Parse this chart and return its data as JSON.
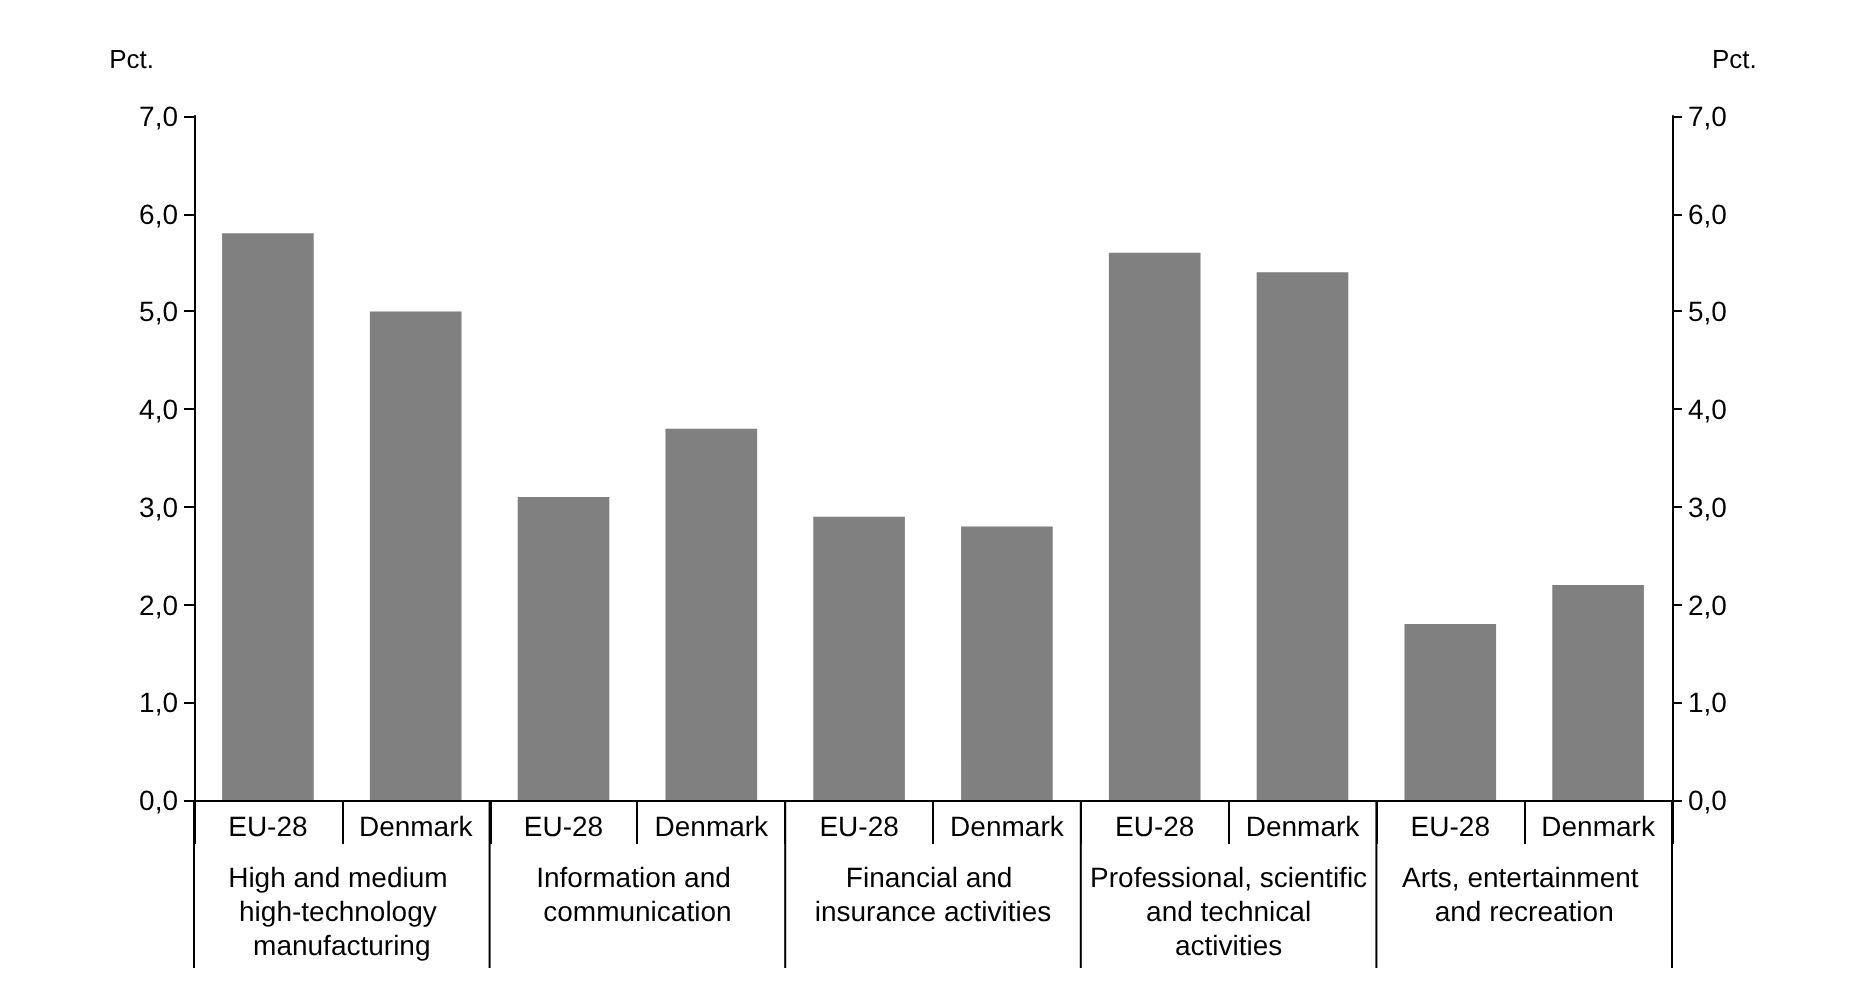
{
  "chart_data": {
    "type": "bar",
    "ylabel": "Pct.",
    "y2label": "Pct.",
    "categories": [
      "EU-28",
      "Denmark",
      "EU-28",
      "Denmark",
      "EU-28",
      "Denmark",
      "EU-28",
      "Denmark",
      "EU-28",
      "Denmark"
    ],
    "values": [
      5.8,
      5.0,
      3.1,
      3.8,
      2.9,
      2.8,
      5.6,
      5.4,
      1.8,
      2.2
    ],
    "color": "#808080",
    "ylim": [
      0,
      7
    ],
    "yticks": [
      {
        "value": 0,
        "label": "0,0"
      },
      {
        "value": 1,
        "label": "1,0"
      },
      {
        "value": 2,
        "label": "2,0"
      },
      {
        "value": 3,
        "label": "3,0"
      },
      {
        "value": 4,
        "label": "4,0"
      },
      {
        "value": 5,
        "label": "5,0"
      },
      {
        "value": 6,
        "label": "6,0"
      },
      {
        "value": 7,
        "label": "7,0"
      }
    ],
    "y2lim": [
      0,
      7
    ],
    "y2ticks": [
      {
        "value": 0,
        "label": "0,0"
      },
      {
        "value": 1,
        "label": "1,0"
      },
      {
        "value": 2,
        "label": "2,0"
      },
      {
        "value": 3,
        "label": "3,0"
      },
      {
        "value": 4,
        "label": "4,0"
      },
      {
        "value": 5,
        "label": "5,0"
      },
      {
        "value": 6,
        "label": "6,0"
      },
      {
        "value": 7,
        "label": "7,0"
      }
    ],
    "annotations": [
      "High and medium high-technology manufacturing",
      "Information and communication",
      "Financial and insurance activities",
      "Professional, scientific and technical activities",
      "Arts, entertainment and recreation"
    ],
    "grid": false
  }
}
